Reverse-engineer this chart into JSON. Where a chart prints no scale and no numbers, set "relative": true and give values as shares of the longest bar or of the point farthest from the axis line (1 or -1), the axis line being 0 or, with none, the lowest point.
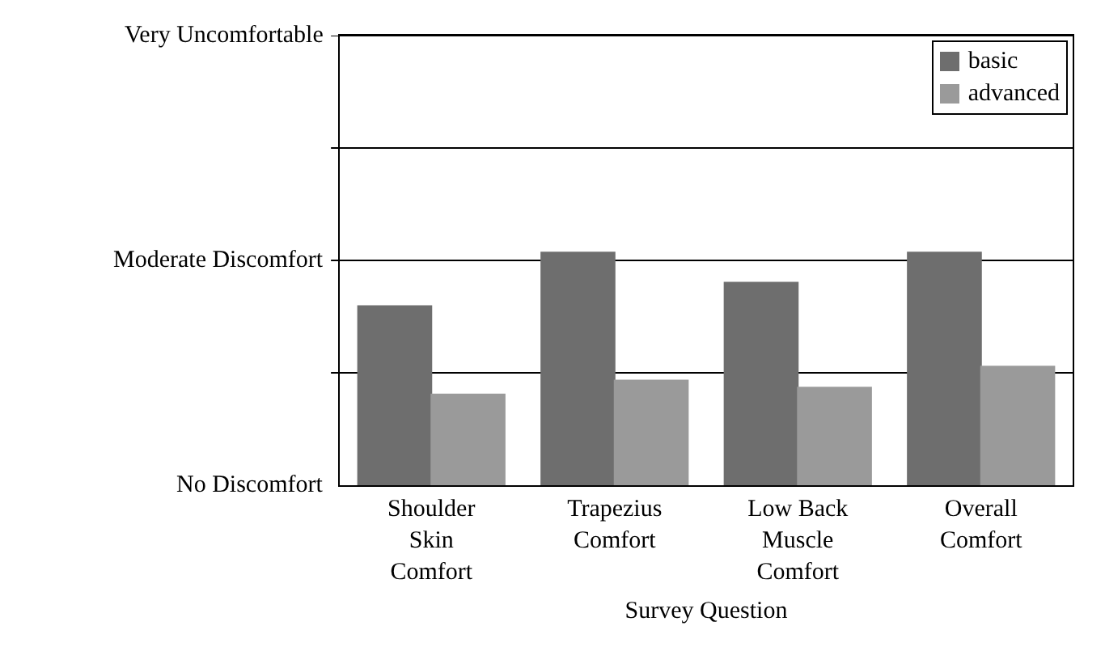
{
  "chart_data": {
    "type": "bar",
    "relative": true,
    "xlabel": "Survey Question",
    "categories": [
      "Shoulder Skin Comfort",
      "Trapezius Comfort",
      "Low Back Muscle Comfort",
      "Overall Comfort"
    ],
    "series": [
      {
        "name": "basic",
        "color": "#6e6e6e",
        "values": [
          0.77,
          1,
          0.87,
          1
        ]
      },
      {
        "name": "advanced",
        "color": "#9a9a9a",
        "values": [
          0.39,
          0.45,
          0.42,
          0.51
        ]
      }
    ],
    "annotations": [
      "No Discomfort"
    ],
    "ref_lines": [
      {
        "axis": "y",
        "value": 0.483,
        "label": null
      },
      {
        "axis": "y",
        "value": 0.966,
        "label": "Moderate Discomfort"
      },
      {
        "axis": "y",
        "value": 1.449,
        "label": null
      },
      {
        "axis": "y",
        "value": 1.932,
        "label": "Very Uncomfortable"
      }
    ],
    "legend": "top right"
  }
}
